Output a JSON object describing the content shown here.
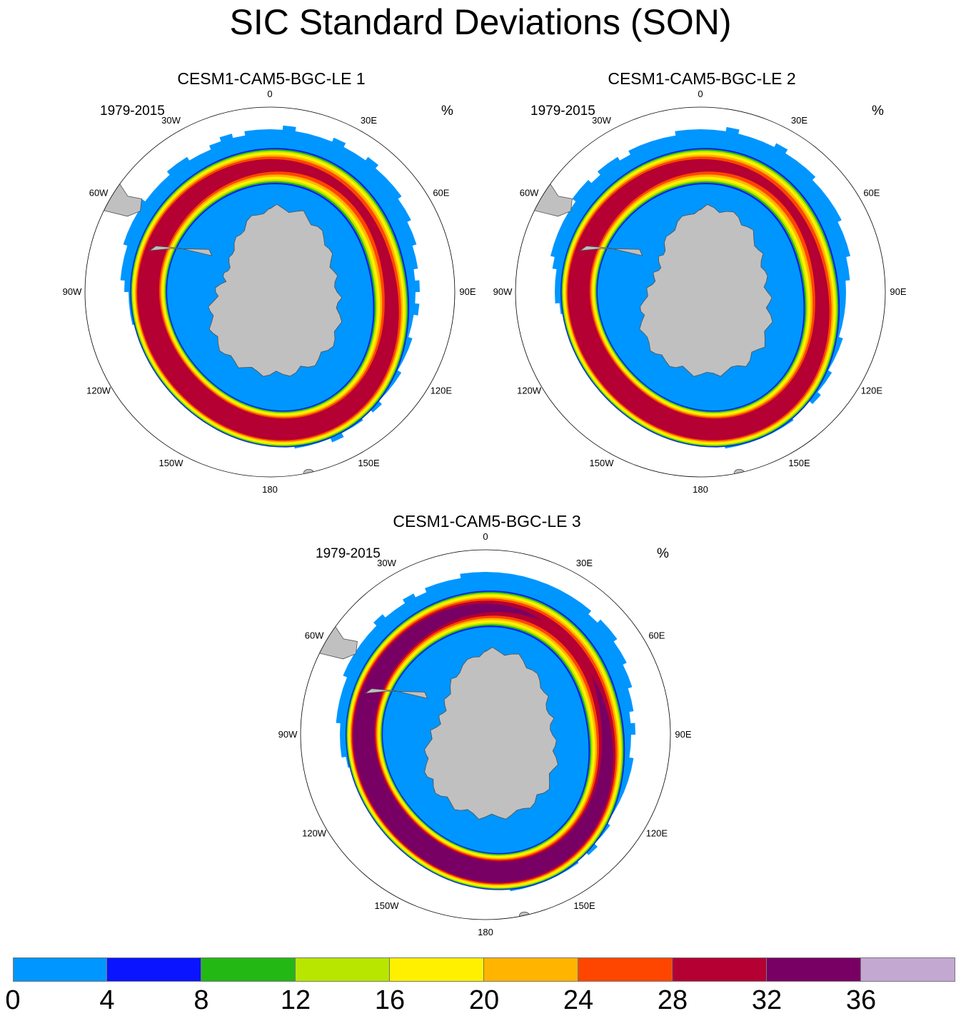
{
  "title": "SIC Standard Deviations (SON)",
  "chart_data": [
    {
      "type": "heatmap",
      "projection": "south polar stereographic",
      "title": "CESM1-CAM5-BGC-LE 1",
      "period": "1979-2015",
      "units": "%",
      "longitude_labels": [
        "0",
        "30E",
        "60E",
        "90E",
        "120E",
        "150E",
        "180",
        "150W",
        "120W",
        "90W",
        "60W",
        "30W"
      ],
      "peak_band_category": "28-32"
    },
    {
      "type": "heatmap",
      "projection": "south polar stereographic",
      "title": "CESM1-CAM5-BGC-LE 2",
      "period": "1979-2015",
      "units": "%",
      "longitude_labels": [
        "0",
        "30E",
        "60E",
        "90E",
        "120E",
        "150E",
        "180",
        "150W",
        "120W",
        "90W",
        "60W",
        "30W"
      ],
      "peak_band_category": "28-32"
    },
    {
      "type": "heatmap",
      "projection": "south polar stereographic",
      "title": "CESM1-CAM5-BGC-LE 3",
      "period": "1979-2015",
      "units": "%",
      "longitude_labels": [
        "0",
        "30E",
        "60E",
        "90E",
        "120E",
        "150E",
        "180",
        "150W",
        "120W",
        "90W",
        "60W",
        "30W"
      ],
      "peak_band_category": "32-36"
    }
  ],
  "colorbar": {
    "levels": [
      "0",
      "4",
      "8",
      "12",
      "16",
      "20",
      "24",
      "28",
      "32",
      "36"
    ],
    "colors": [
      "#0096ff",
      "#0a14ff",
      "#23b814",
      "#b8e600",
      "#fff000",
      "#ffb400",
      "#ff4600",
      "#b40032",
      "#780064",
      "#c3a8d2"
    ]
  },
  "map_colors": {
    "land": "#c0c0c0",
    "coast": "#505050",
    "ocean": "#ffffff"
  }
}
